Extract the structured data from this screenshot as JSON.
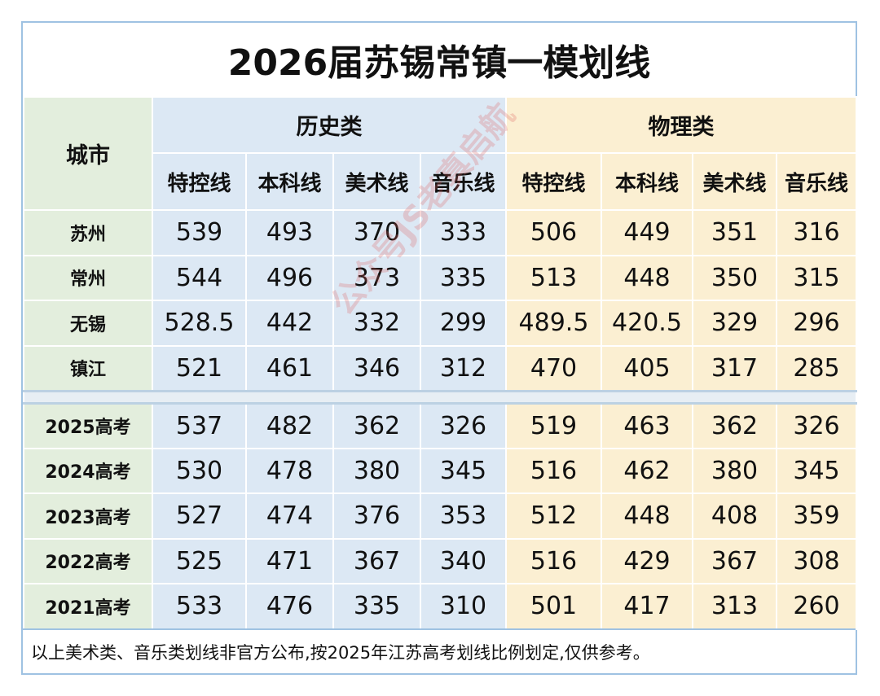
{
  "title": "2026届苏锡常镇一模划线",
  "headers": {
    "city": "城市",
    "history": "历史类",
    "physics": "物理类",
    "sub": [
      "特控线",
      "本科线",
      "美术线",
      "音乐线",
      "特控线",
      "本科线",
      "美术线",
      "音乐线"
    ]
  },
  "cities": [
    {
      "label": "苏州",
      "values": [
        "539",
        "493",
        "370",
        "333",
        "506",
        "449",
        "351",
        "316"
      ]
    },
    {
      "label": "常州",
      "values": [
        "544",
        "496",
        "373",
        "335",
        "513",
        "448",
        "350",
        "315"
      ]
    },
    {
      "label": "无锡",
      "values": [
        "528.5",
        "442",
        "332",
        "299",
        "489.5",
        "420.5",
        "329",
        "296"
      ]
    },
    {
      "label": "镇江",
      "values": [
        "521",
        "461",
        "346",
        "312",
        "470",
        "405",
        "317",
        "285"
      ]
    }
  ],
  "years": [
    {
      "label": "2025高考",
      "values": [
        "537",
        "482",
        "362",
        "326",
        "519",
        "463",
        "362",
        "326"
      ]
    },
    {
      "label": "2024高考",
      "values": [
        "530",
        "478",
        "380",
        "345",
        "516",
        "462",
        "380",
        "345"
      ]
    },
    {
      "label": "2023高考",
      "values": [
        "527",
        "474",
        "376",
        "353",
        "512",
        "448",
        "408",
        "359"
      ]
    },
    {
      "label": "2022高考",
      "values": [
        "525",
        "471",
        "367",
        "340",
        "516",
        "429",
        "367",
        "308"
      ]
    },
    {
      "label": "2021高考",
      "values": [
        "533",
        "476",
        "335",
        "310",
        "501",
        "417",
        "313",
        "260"
      ]
    }
  ],
  "footer": "以上美术类、音乐类划线非官方公布,按2025年江苏高考划线比例划定,仅供参考。",
  "watermark": "公众号JS老真启航",
  "colors": {
    "city_bg": "#e3eedd",
    "history_bg": "#dce8f4",
    "physics_bg": "#fbefd2",
    "border": "#9fc2e2"
  }
}
